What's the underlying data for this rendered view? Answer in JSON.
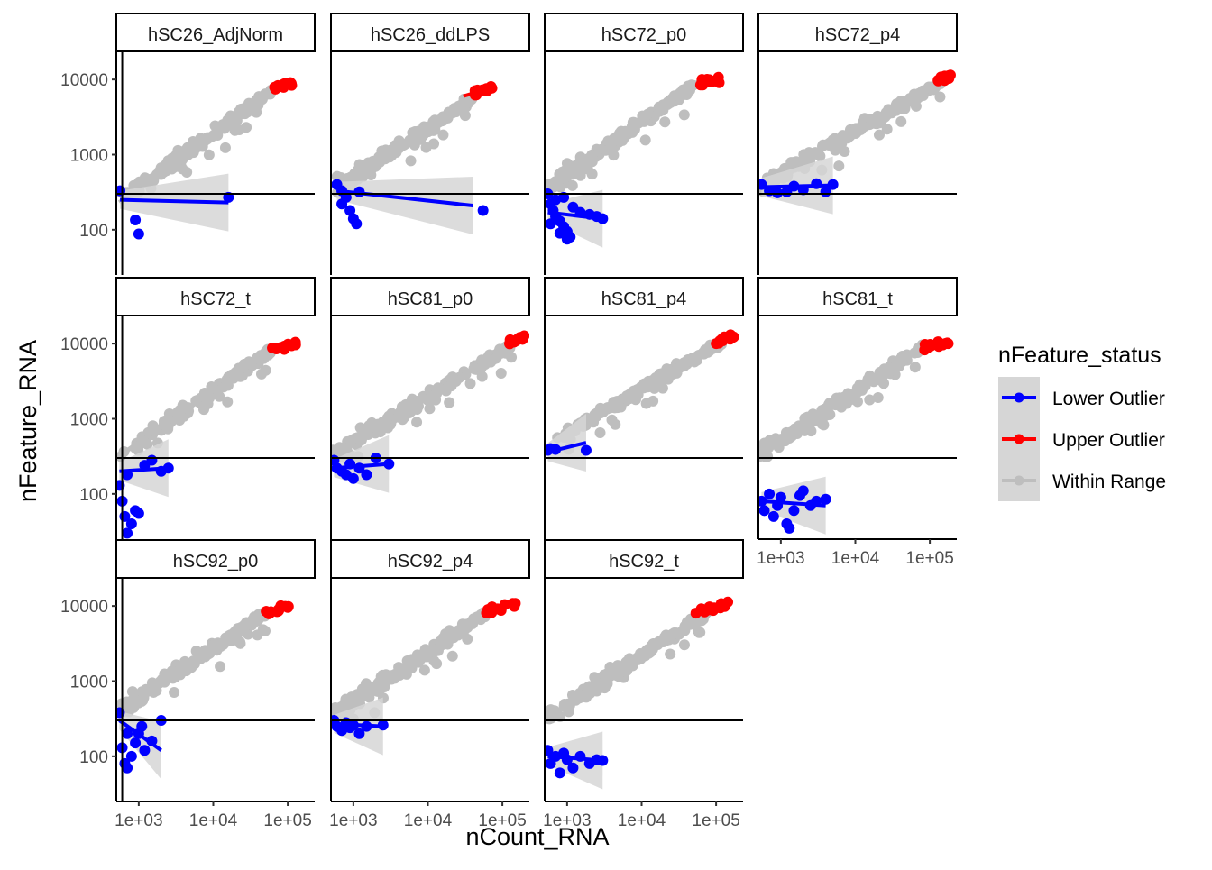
{
  "chart_data": {
    "type": "scatter",
    "x_label": "nCount_RNA",
    "y_label": "nFeature_RNA",
    "x_scale": "log10",
    "y_scale": "log10",
    "x_lim": [
      500,
      230000
    ],
    "y_lim": [
      25,
      23000
    ],
    "x_ticks": [
      {
        "value": 1000,
        "label": "1e+03"
      },
      {
        "value": 10000,
        "label": "1e+04"
      },
      {
        "value": 100000,
        "label": "1e+05"
      }
    ],
    "y_ticks": [
      {
        "value": 100,
        "label": "100"
      },
      {
        "value": 1000,
        "label": "1000"
      },
      {
        "value": 10000,
        "label": "10000"
      }
    ],
    "threshold_y": 300,
    "legend": {
      "title": "nFeature_status",
      "placement": "right",
      "entries": [
        {
          "label": "Lower Outlier",
          "color": "#0000ff"
        },
        {
          "label": "Upper Outlier",
          "color": "#ff0000"
        },
        {
          "label": "Within Range",
          "color": "#bebebe"
        }
      ]
    },
    "colors": {
      "lower": "#0000ff",
      "upper": "#ff0000",
      "within": "#bebebe",
      "ribbon": "#d6d6d6"
    },
    "panels": [
      {
        "name": "hSC26_AdjNorm",
        "vline_x": 600,
        "within": {
          "x": [
            550,
            60000
          ],
          "y": [
            230,
            7000
          ]
        },
        "upper": {
          "x": [
            60000,
            120000
          ],
          "y": [
            7500,
            9000
          ]
        },
        "lower": {
          "points": [
            [
              560,
              330
            ],
            [
              900,
              135
            ],
            [
              1000,
              88
            ],
            [
              16000,
              270
            ]
          ],
          "fit": [
            [
              560,
              250
            ],
            [
              16000,
              230
            ]
          ]
        }
      },
      {
        "name": "hSC26_ddLPS",
        "vline_x": 500,
        "within": {
          "x": [
            600,
            40000
          ],
          "y": [
            350,
            5500
          ]
        },
        "upper": {
          "x": [
            30000,
            80000
          ],
          "y": [
            6000,
            8000
          ]
        },
        "lower": {
          "points": [
            [
              600,
              400
            ],
            [
              700,
              330
            ],
            [
              800,
              270
            ],
            [
              900,
              180
            ],
            [
              1000,
              140
            ],
            [
              1100,
              120
            ],
            [
              700,
              220
            ],
            [
              1200,
              320
            ],
            [
              55000,
              180
            ]
          ],
          "fit": [
            [
              600,
              330
            ],
            [
              40000,
              210
            ]
          ]
        }
      },
      {
        "name": "hSC72_p0",
        "vline_x": 500,
        "within": {
          "x": [
            500,
            50000
          ],
          "y": [
            320,
            8500
          ]
        },
        "upper": {
          "x": [
            60000,
            120000
          ],
          "y": [
            8500,
            10500
          ]
        },
        "lower": {
          "points": [
            [
              550,
              300
            ],
            [
              600,
              220
            ],
            [
              650,
              180
            ],
            [
              700,
              150
            ],
            [
              800,
              130
            ],
            [
              900,
              110
            ],
            [
              1000,
              95
            ],
            [
              1100,
              80
            ],
            [
              700,
              250
            ],
            [
              900,
              270
            ],
            [
              1200,
              200
            ],
            [
              1500,
              170
            ],
            [
              2000,
              160
            ],
            [
              2500,
              150
            ],
            [
              600,
              120
            ],
            [
              3000,
              140
            ],
            [
              800,
              90
            ],
            [
              1000,
              75
            ]
          ],
          "fit": [
            [
              550,
              170
            ],
            [
              3000,
              140
            ]
          ]
        }
      },
      {
        "name": "hSC72_p4",
        "vline_x": 500,
        "within": {
          "x": [
            550,
            150000
          ],
          "y": [
            400,
            9500
          ]
        },
        "upper": {
          "x": [
            120000,
            200000
          ],
          "y": [
            9500,
            11000
          ]
        },
        "lower": {
          "points": [
            [
              550,
              400
            ],
            [
              700,
              330
            ],
            [
              900,
              310
            ],
            [
              1200,
              320
            ],
            [
              1500,
              380
            ],
            [
              2000,
              340
            ],
            [
              3000,
              410
            ],
            [
              4000,
              320
            ],
            [
              5000,
              400
            ]
          ],
          "fit": [
            [
              550,
              370
            ],
            [
              5000,
              390
            ]
          ]
        }
      },
      {
        "name": "hSC72_t",
        "vline_x": 600,
        "within": {
          "x": [
            550,
            60000
          ],
          "y": [
            320,
            8000
          ]
        },
        "upper": {
          "x": [
            60000,
            130000
          ],
          "y": [
            8500,
            10000
          ]
        },
        "lower": {
          "points": [
            [
              550,
              130
            ],
            [
              600,
              80
            ],
            [
              650,
              50
            ],
            [
              700,
              30
            ],
            [
              800,
              40
            ],
            [
              900,
              60
            ],
            [
              1000,
              55
            ],
            [
              1200,
              240
            ],
            [
              1500,
              280
            ],
            [
              2000,
              200
            ],
            [
              700,
              180
            ],
            [
              2500,
              220
            ]
          ],
          "fit": [
            [
              550,
              200
            ],
            [
              2500,
              220
            ]
          ]
        }
      },
      {
        "name": "hSC81_p0",
        "vline_x": 500,
        "within": {
          "x": [
            500,
            150000
          ],
          "y": [
            330,
            10000
          ]
        },
        "upper": {
          "x": [
            120000,
            200000
          ],
          "y": [
            10000,
            12000
          ]
        },
        "lower": {
          "points": [
            [
              550,
              280
            ],
            [
              600,
              220
            ],
            [
              700,
              200
            ],
            [
              800,
              180
            ],
            [
              900,
              250
            ],
            [
              1000,
              160
            ],
            [
              1200,
              220
            ],
            [
              1500,
              180
            ],
            [
              2000,
              300
            ],
            [
              3000,
              250
            ]
          ],
          "fit": [
            [
              550,
              220
            ],
            [
              3000,
              250
            ]
          ]
        }
      },
      {
        "name": "hSC81_p4",
        "vline_x": 500,
        "within": {
          "x": [
            700,
            120000
          ],
          "y": [
            500,
            10500
          ]
        },
        "upper": {
          "x": [
            100000,
            180000
          ],
          "y": [
            10500,
            12000
          ]
        },
        "lower": {
          "points": [
            [
              550,
              380
            ],
            [
              600,
              400
            ],
            [
              700,
              390
            ],
            [
              1800,
              380
            ]
          ],
          "fit": [
            [
              550,
              360
            ],
            [
              1800,
              480
            ]
          ]
        }
      },
      {
        "name": "hSC81_t",
        "vline_x": 500,
        "within": {
          "x": [
            500,
            80000
          ],
          "y": [
            330,
            9000
          ]
        },
        "upper": {
          "x": [
            80000,
            180000
          ],
          "y": [
            9000,
            10500
          ]
        },
        "lower": {
          "points": [
            [
              550,
              80
            ],
            [
              600,
              60
            ],
            [
              700,
              100
            ],
            [
              800,
              50
            ],
            [
              900,
              70
            ],
            [
              1000,
              90
            ],
            [
              1200,
              40
            ],
            [
              1500,
              60
            ],
            [
              2000,
              110
            ],
            [
              2500,
              70
            ],
            [
              3000,
              80
            ],
            [
              4000,
              85
            ],
            [
              1300,
              35
            ],
            [
              1800,
              95
            ]
          ],
          "fit": [
            [
              550,
              80
            ],
            [
              4000,
              70
            ]
          ]
        }
      },
      {
        "name": "hSC92_p0",
        "vline_x": 600,
        "within": {
          "x": [
            550,
            50000
          ],
          "y": [
            400,
            8000
          ]
        },
        "upper": {
          "x": [
            50000,
            110000
          ],
          "y": [
            8000,
            9500
          ]
        },
        "lower": {
          "points": [
            [
              550,
              380
            ],
            [
              600,
              130
            ],
            [
              650,
              80
            ],
            [
              700,
              70
            ],
            [
              800,
              100
            ],
            [
              900,
              150
            ],
            [
              1000,
              200
            ],
            [
              1100,
              250
            ],
            [
              1500,
              160
            ],
            [
              700,
              200
            ],
            [
              2000,
              300
            ],
            [
              1200,
              120
            ]
          ],
          "fit": [
            [
              550,
              300
            ],
            [
              2000,
              120
            ]
          ]
        }
      },
      {
        "name": "hSC92_p4",
        "vline_x": 500,
        "within": {
          "x": [
            550,
            60000
          ],
          "y": [
            350,
            8000
          ]
        },
        "upper": {
          "x": [
            60000,
            160000
          ],
          "y": [
            8500,
            10500
          ]
        },
        "lower": {
          "points": [
            [
              550,
              300
            ],
            [
              600,
              250
            ],
            [
              700,
              220
            ],
            [
              800,
              280
            ],
            [
              900,
              240
            ],
            [
              1000,
              260
            ],
            [
              1200,
              200
            ],
            [
              1500,
              250
            ],
            [
              2500,
              260
            ]
          ],
          "fit": [
            [
              550,
              270
            ],
            [
              2500,
              250
            ]
          ]
        }
      },
      {
        "name": "hSC92_t",
        "vline_x": 500,
        "within": {
          "x": [
            500,
            80000
          ],
          "y": [
            300,
            8500
          ]
        },
        "upper": {
          "x": [
            50000,
            150000
          ],
          "y": [
            8000,
            10500
          ]
        },
        "lower": {
          "points": [
            [
              550,
              120
            ],
            [
              600,
              80
            ],
            [
              700,
              100
            ],
            [
              800,
              60
            ],
            [
              900,
              110
            ],
            [
              1000,
              90
            ],
            [
              1200,
              70
            ],
            [
              1500,
              100
            ],
            [
              2000,
              80
            ],
            [
              2500,
              90
            ],
            [
              3000,
              88
            ]
          ],
          "fit": [
            [
              550,
              100
            ],
            [
              3000,
              88
            ]
          ]
        }
      }
    ]
  }
}
